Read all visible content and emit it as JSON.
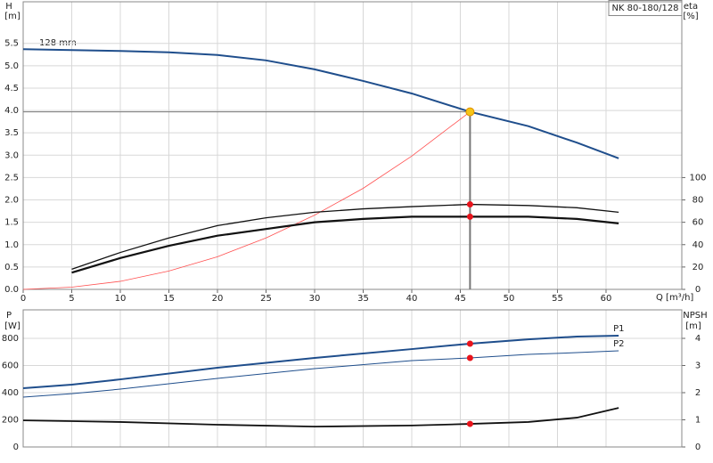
{
  "chart_data": [
    {
      "type": "line",
      "title": "NK 80-180/128",
      "ylabel": "H",
      "yunit": "[m]",
      "y2label": "eta",
      "y2unit": "[%]",
      "xlabel": "Q [m³/h]",
      "annotation": "128 mm",
      "xlim": [
        0,
        67.8
      ],
      "xticks": [
        0,
        5,
        10,
        15,
        20,
        25,
        30,
        35,
        40,
        45,
        50,
        55,
        60
      ],
      "ylim": [
        0,
        6.43
      ],
      "yticks": [
        {
          "value": 0,
          "label": "0.0"
        },
        0.5,
        {
          "value": 1,
          "label": "1.0"
        },
        1.5,
        {
          "value": 2,
          "label": "2.0"
        },
        2.5,
        {
          "value": 3,
          "label": "3.0"
        },
        3.5,
        {
          "value": 4,
          "label": "4.0"
        },
        4.5,
        {
          "value": 5,
          "label": "5.0"
        },
        5.5
      ],
      "y2lim": [
        0,
        257.2
      ],
      "y2ticks": [
        0,
        20,
        40,
        60,
        80,
        100
      ],
      "grid": true,
      "series": [
        {
          "color": "#1f4e8c",
          "linewidth": 2,
          "x": [
            0,
            5,
            10,
            15,
            20,
            25,
            30,
            35,
            40,
            46,
            52,
            57,
            61.3
          ],
          "values": [
            5.37,
            5.35,
            5.33,
            5.3,
            5.24,
            5.12,
            4.92,
            4.66,
            4.38,
            3.97,
            3.65,
            3.28,
            2.93
          ]
        },
        {
          "color": "#ff5050",
          "linewidth": 0.8,
          "x": [
            0,
            5,
            10,
            15,
            20,
            25,
            30,
            35,
            40,
            46
          ],
          "values": [
            0,
            0.05,
            0.18,
            0.41,
            0.73,
            1.15,
            1.66,
            2.26,
            2.98,
            3.97
          ]
        },
        {
          "color": "#111111",
          "linewidth": 1.3,
          "axis": "y2",
          "x": [
            5,
            10,
            15,
            20,
            25,
            30,
            35,
            40,
            46,
            52,
            57,
            61.3
          ],
          "values": [
            18,
            33,
            46,
            57,
            64,
            69,
            72,
            74,
            76,
            75,
            73,
            69
          ]
        },
        {
          "color": "#111111",
          "linewidth": 2.2,
          "axis": "y2",
          "x": [
            5,
            10,
            15,
            20,
            25,
            30,
            35,
            40,
            46,
            52,
            57,
            61.3
          ],
          "values": [
            15,
            28,
            39,
            48,
            54,
            60,
            63,
            65,
            65,
            65,
            63,
            59
          ]
        }
      ],
      "markers": [
        {
          "x": 46,
          "y": 3.97,
          "color": "#f5c518",
          "guide": true
        },
        {
          "x": 46,
          "y": 76,
          "color": "#e8141c",
          "axis": "y2"
        },
        {
          "x": 46,
          "y": 65,
          "color": "#e8141c",
          "axis": "y2"
        }
      ]
    },
    {
      "type": "line",
      "ylabel": "P",
      "yunit": "[W]",
      "y2label": "NPSH",
      "y2unit": "[m]",
      "xlim": [
        0,
        67.8
      ],
      "ylim": [
        0,
        1010
      ],
      "yticks": [
        0,
        200,
        400,
        600,
        800
      ],
      "y2lim": [
        0,
        5.05
      ],
      "y2ticks": [
        0,
        1,
        2,
        3,
        4
      ],
      "grid": true,
      "series": [
        {
          "name": "P1",
          "color": "#1f4e8c",
          "linewidth": 2,
          "x": [
            0,
            5,
            10,
            20,
            30,
            40,
            46,
            52,
            57,
            61.3
          ],
          "values": [
            433,
            459,
            498,
            584,
            656,
            721,
            761,
            793,
            813,
            820
          ]
        },
        {
          "name": "P2",
          "color": "#1f4e8c",
          "linewidth": 1,
          "x": [
            0,
            5,
            10,
            20,
            30,
            40,
            46,
            52,
            57,
            61.3
          ],
          "values": [
            367,
            393,
            426,
            505,
            577,
            636,
            656,
            682,
            695,
            708
          ]
        },
        {
          "color": "#111111",
          "linewidth": 1.8,
          "axis": "y2",
          "x": [
            0,
            5,
            10,
            20,
            30,
            40,
            46,
            52,
            57,
            61.3
          ],
          "values": [
            0.98,
            0.95,
            0.92,
            0.82,
            0.75,
            0.79,
            0.85,
            0.92,
            1.08,
            1.44
          ]
        }
      ],
      "markers": [
        {
          "x": 46,
          "y": 761,
          "color": "#e8141c"
        },
        {
          "x": 46,
          "y": 656,
          "color": "#e8141c"
        },
        {
          "x": 46,
          "y": 0.85,
          "color": "#e8141c",
          "axis": "y2"
        }
      ]
    }
  ]
}
